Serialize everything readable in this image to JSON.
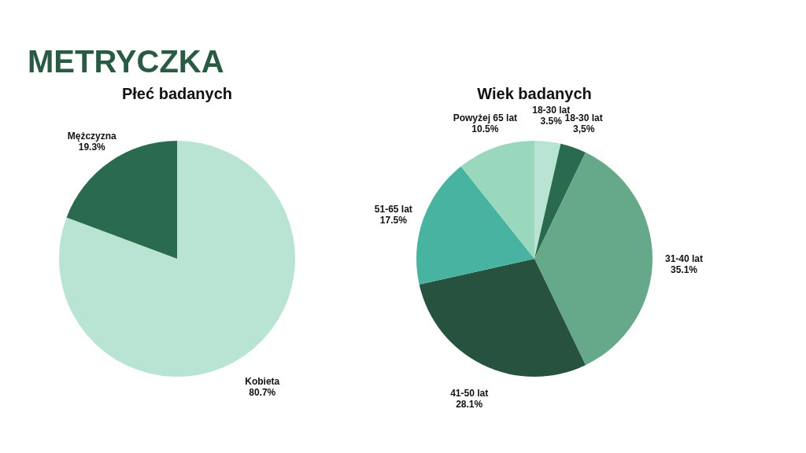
{
  "chart_data": [
    {
      "type": "pie",
      "title": "Płeć badanych",
      "annotations": [
        "METRYCZKA"
      ],
      "categories": [
        "Kobieta",
        "Mężczyzna"
      ],
      "values": [
        80.7,
        19.3
      ],
      "colors": [
        "#b9e4d3",
        "#2a6b4f"
      ],
      "value_labels": [
        "80.7%",
        "19.3%"
      ],
      "legend": false
    },
    {
      "type": "pie",
      "title": "Wiek badanych",
      "categories": [
        "18-30 lat",
        "18-30 lat",
        "31-40 lat",
        "41-50 lat",
        "51-65 lat",
        "Powyżej 65 lat"
      ],
      "values": [
        3.5,
        3.5,
        35.1,
        28.1,
        17.5,
        10.5
      ],
      "colors": [
        "#b9e4d3",
        "#2a6b4f",
        "#66a88a",
        "#285240",
        "#48b3a0",
        "#9ad8bd"
      ],
      "value_labels": [
        "3.5%",
        "3,5%",
        "35.1%",
        "28.1%",
        "17.5%",
        "10.5%"
      ],
      "legend": false
    }
  ]
}
